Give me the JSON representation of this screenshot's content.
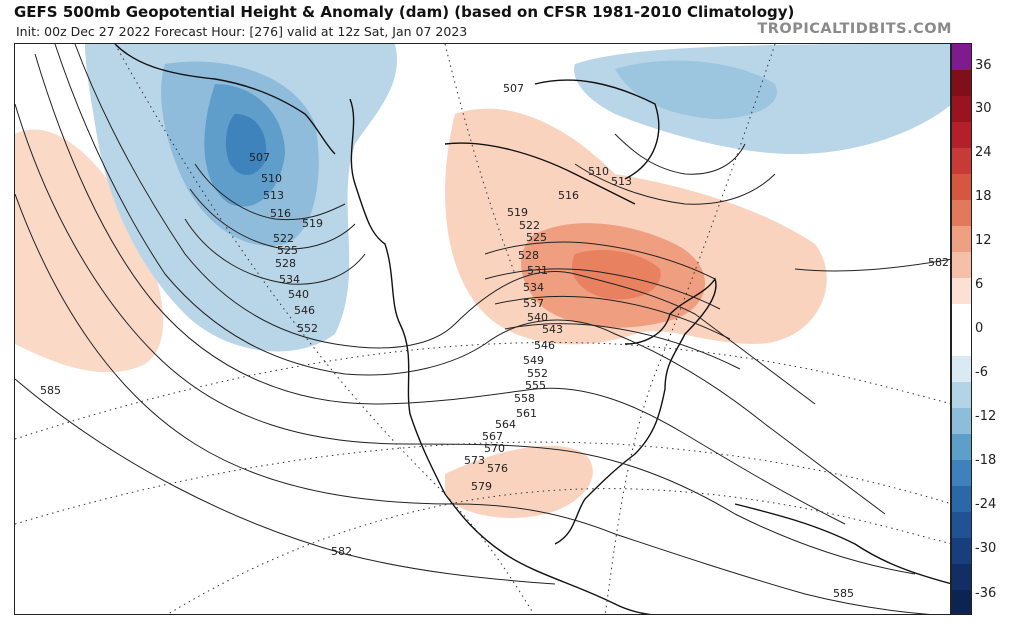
{
  "header": {
    "title": "GEFS 500mb Geopotential Height & Anomaly (dam) (based on CFSR 1981-2010 Climatology)",
    "subtitle": "Init: 00z Dec 27 2022   Forecast Hour: [276]   valid at 12z Sat, Jan 07 2023",
    "brand": "TROPICALTIDBITS.COM"
  },
  "colorbar": {
    "ticks": [
      "36",
      "30",
      "24",
      "18",
      "12",
      "6",
      "0",
      "-6",
      "-12",
      "-18",
      "-24",
      "-30",
      "-36"
    ],
    "colors": [
      "#7f1b8c",
      "#800f1a",
      "#9a1420",
      "#b3202a",
      "#c83a35",
      "#d6573f",
      "#e07a5a",
      "#eda082",
      "#f5c0a8",
      "#fbe0d3",
      "#ffffff",
      "#ffffff",
      "#dbe9f3",
      "#b3d3e6",
      "#8dbdd9",
      "#5e9fca",
      "#3f82bb",
      "#2b68a8",
      "#1f5393",
      "#173f7d",
      "#112f66",
      "#0d2352"
    ]
  },
  "contour_labels": [
    {
      "text": "507"
    },
    {
      "text": "510"
    },
    {
      "text": "513"
    },
    {
      "text": "516"
    },
    {
      "text": "519"
    },
    {
      "text": "522"
    },
    {
      "text": "525"
    },
    {
      "text": "528"
    },
    {
      "text": "534"
    },
    {
      "text": "540"
    },
    {
      "text": "546"
    },
    {
      "text": "552"
    },
    {
      "text": "585"
    },
    {
      "text": "507"
    },
    {
      "text": "510"
    },
    {
      "text": "513"
    },
    {
      "text": "516"
    },
    {
      "text": "519"
    },
    {
      "text": "522"
    },
    {
      "text": "525"
    },
    {
      "text": "528"
    },
    {
      "text": "531"
    },
    {
      "text": "534"
    },
    {
      "text": "537"
    },
    {
      "text": "540"
    },
    {
      "text": "543"
    },
    {
      "text": "546"
    },
    {
      "text": "549"
    },
    {
      "text": "552"
    },
    {
      "text": "555"
    },
    {
      "text": "558"
    },
    {
      "text": "561"
    },
    {
      "text": "564"
    },
    {
      "text": "567"
    },
    {
      "text": "570"
    },
    {
      "text": "573"
    },
    {
      "text": "576"
    },
    {
      "text": "579"
    },
    {
      "text": "582"
    },
    {
      "text": "582"
    },
    {
      "text": "585"
    }
  ]
}
